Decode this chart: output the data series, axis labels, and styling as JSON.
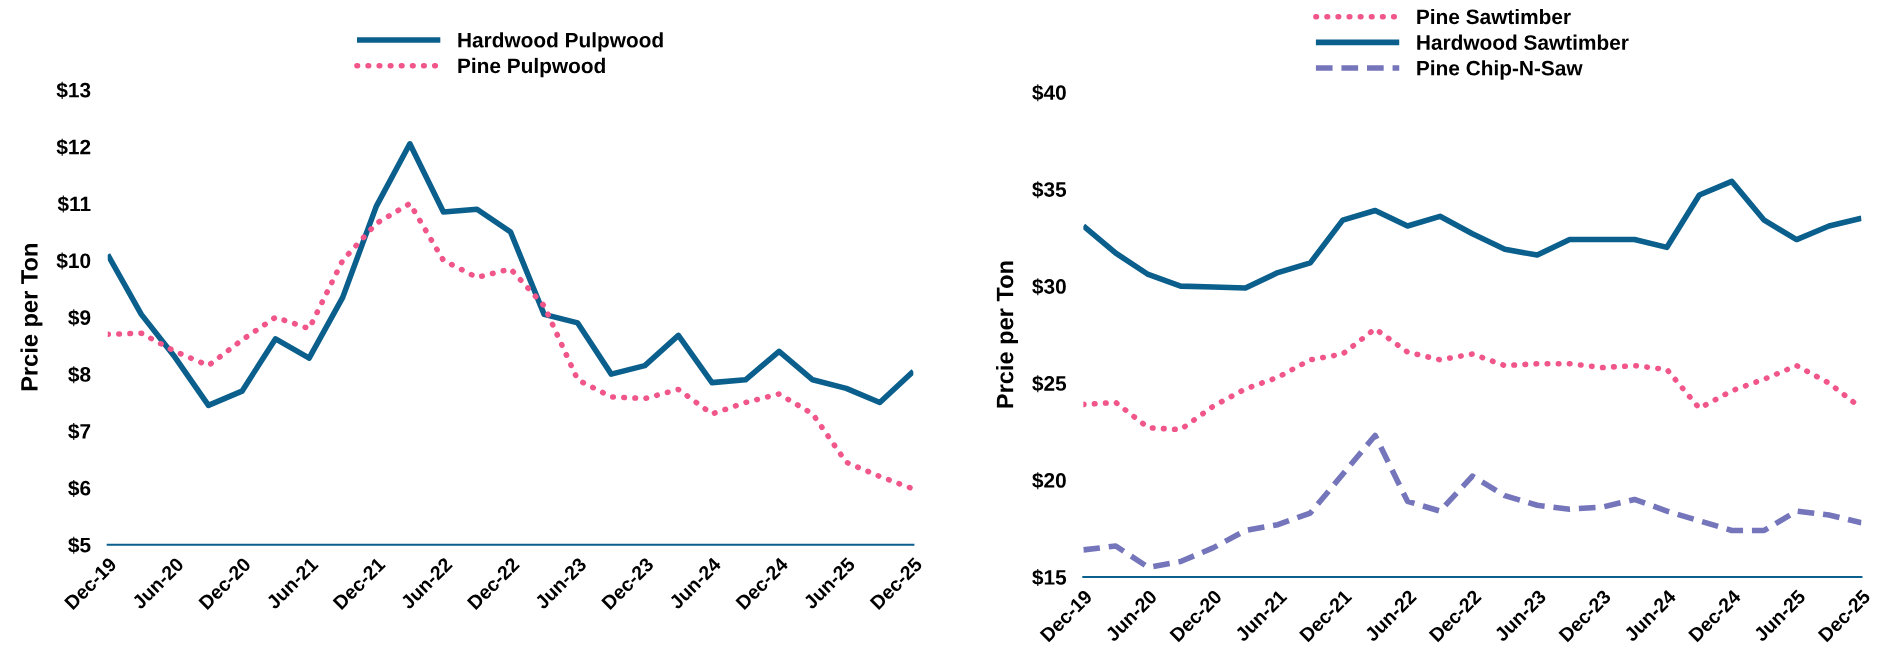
{
  "chart_data": [
    {
      "type": "line",
      "ylabel": "Prcie per Ton",
      "legend": "top",
      "grid": false,
      "categories": [
        "Dec-19",
        null,
        "Jun-20",
        null,
        "Dec-20",
        null,
        "Jun-21",
        null,
        "Dec-21",
        null,
        "Jun-22",
        null,
        "Dec-22",
        null,
        "Jun-23",
        null,
        "Dec-23",
        null,
        "Jun-24",
        null,
        "Dec-24",
        null,
        "Jun-25",
        null,
        "Dec-25"
      ],
      "ylim": [
        5,
        13
      ],
      "yticks": [
        {
          "value": 5,
          "label": "$5"
        },
        {
          "value": 6,
          "label": "$6"
        },
        {
          "value": 7,
          "label": "$7"
        },
        {
          "value": 8,
          "label": "$8"
        },
        {
          "value": 9,
          "label": "$9"
        },
        {
          "value": 10,
          "label": "$10"
        },
        {
          "value": 11,
          "label": "$11"
        },
        {
          "value": 12,
          "label": "$12"
        },
        {
          "value": 13,
          "label": "$13"
        }
      ],
      "series": [
        {
          "name": "Hardwood Pulpwood",
          "color": "#0b5f8c",
          "line_style": "solid",
          "values": [
            10.1,
            9.05,
            8.3,
            7.45,
            7.7,
            8.62,
            8.28,
            9.35,
            10.95,
            12.05,
            10.85,
            10.9,
            10.5,
            9.05,
            8.9,
            8.0,
            8.15,
            8.68,
            7.85,
            7.9,
            8.4,
            7.9,
            7.75,
            7.5,
            8.05
          ]
        },
        {
          "name": "Pine Pulpwood",
          "color": "#f0568a",
          "line_style": "dotted",
          "values": [
            8.7,
            8.72,
            8.4,
            8.15,
            8.6,
            9.0,
            8.8,
            10.0,
            10.65,
            11.0,
            10.0,
            9.7,
            9.85,
            9.2,
            7.9,
            7.6,
            7.57,
            7.73,
            7.3,
            7.5,
            7.65,
            7.3,
            6.45,
            6.2,
            5.98
          ]
        }
      ]
    },
    {
      "type": "line",
      "ylabel": "Prcie per Ton",
      "legend": "top",
      "grid": false,
      "categories": [
        "Dec-19",
        null,
        "Jun-20",
        null,
        "Dec-20",
        null,
        "Jun-21",
        null,
        "Dec-21",
        null,
        "Jun-22",
        null,
        "Dec-22",
        null,
        "Jun-23",
        null,
        "Dec-23",
        null,
        "Jun-24",
        null,
        "Dec-24",
        null,
        "Jun-25",
        null,
        "Dec-25"
      ],
      "ylim": [
        15,
        40
      ],
      "yticks": [
        {
          "value": 15,
          "label": "$15"
        },
        {
          "value": 20,
          "label": "$20"
        },
        {
          "value": 25,
          "label": "$25"
        },
        {
          "value": 30,
          "label": "$30"
        },
        {
          "value": 35,
          "label": "$35"
        },
        {
          "value": 40,
          "label": "$40"
        }
      ],
      "series": [
        {
          "name": "Pine Sawtimber",
          "color": "#f0568a",
          "line_style": "dotted",
          "values": [
            23.9,
            24.0,
            22.7,
            22.6,
            23.8,
            24.7,
            25.3,
            26.2,
            26.5,
            27.8,
            26.6,
            26.2,
            26.5,
            25.9,
            26.0,
            26.0,
            25.8,
            25.9,
            25.7,
            23.7,
            24.6,
            25.2,
            25.9,
            25.0,
            23.7
          ]
        },
        {
          "name": "Hardwood Sawtimber",
          "color": "#0b5f8c",
          "line_style": "solid",
          "values": [
            33.1,
            31.7,
            30.6,
            30.0,
            29.95,
            29.9,
            30.7,
            31.2,
            33.4,
            33.9,
            33.1,
            33.6,
            32.7,
            31.9,
            31.6,
            32.4,
            32.4,
            32.4,
            32.0,
            34.7,
            35.4,
            33.4,
            32.4,
            33.1,
            33.5
          ]
        },
        {
          "name": "Pine Chip-N-Saw",
          "color": "#7575bb",
          "line_style": "dashed",
          "values": [
            16.4,
            16.6,
            15.5,
            15.8,
            16.5,
            17.4,
            17.7,
            18.3,
            20.3,
            22.3,
            18.9,
            18.4,
            20.2,
            19.2,
            18.7,
            18.5,
            18.6,
            19.0,
            18.4,
            17.9,
            17.4,
            17.4,
            18.4,
            18.2,
            17.8
          ]
        }
      ]
    }
  ]
}
